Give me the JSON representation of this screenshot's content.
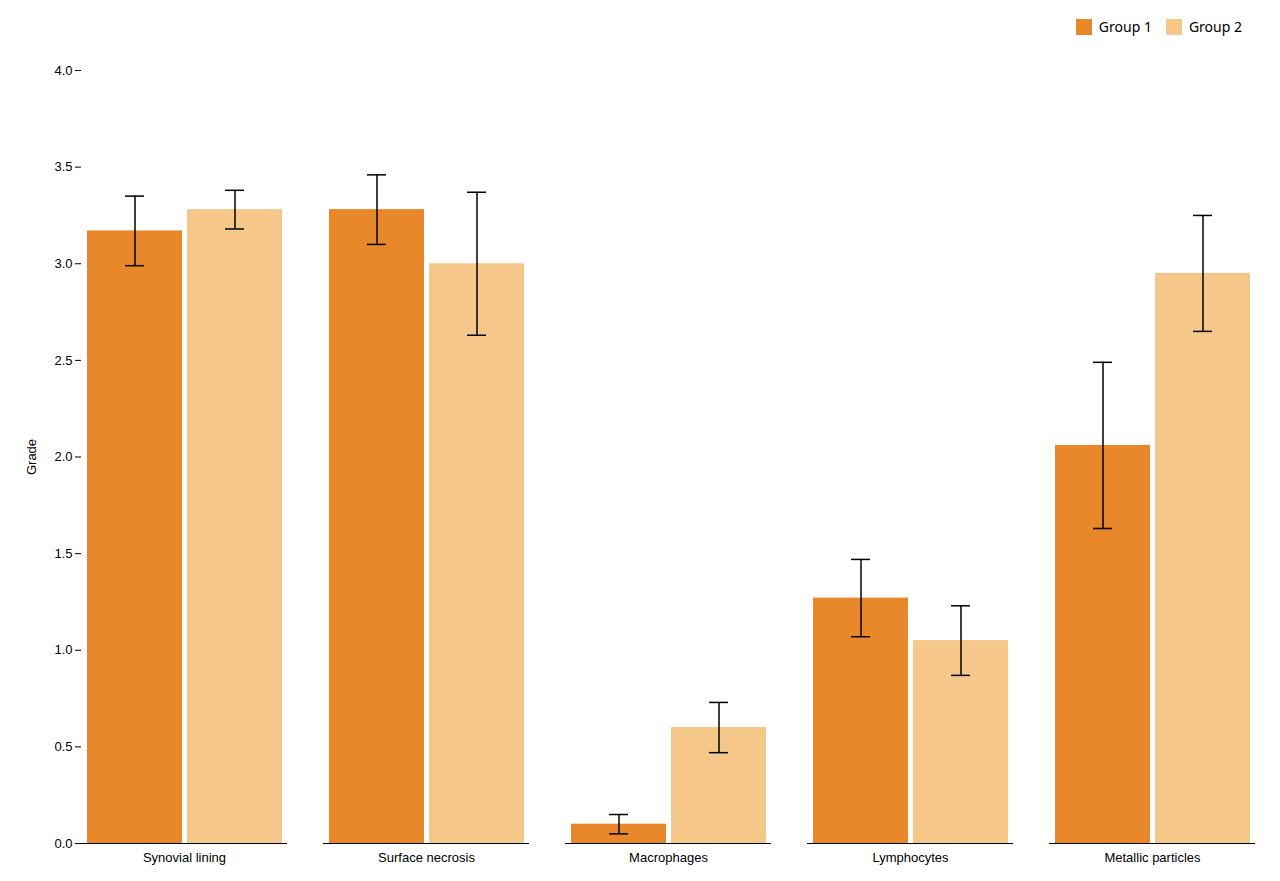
{
  "chart_data": {
    "type": "bar",
    "categories": [
      "Synovial lining",
      "Surface necrosis",
      "Macrophages",
      "Lymphocytes",
      "Metallic particles"
    ],
    "series": [
      {
        "name": "Group 1",
        "color": "#E8882A",
        "values": [
          3.17,
          3.28,
          0.1,
          1.27,
          2.06
        ],
        "errors": [
          0.18,
          0.18,
          0.05,
          0.2,
          0.43
        ]
      },
      {
        "name": "Group 2",
        "color": "#F5C88A",
        "values": [
          3.28,
          3.0,
          0.6,
          1.05,
          2.95
        ],
        "errors": [
          0.1,
          0.37,
          0.13,
          0.18,
          0.3
        ]
      }
    ],
    "ylabel": "Grade",
    "ylim": [
      0,
      4.0
    ],
    "yticks": [
      {
        "value": 0.0,
        "label": "0.0"
      },
      {
        "value": 0.5,
        "label": "0.5"
      },
      {
        "value": 1.0,
        "label": "1.0"
      },
      {
        "value": 1.5,
        "label": "1.5"
      },
      {
        "value": 2.0,
        "label": "2.0"
      },
      {
        "value": 2.5,
        "label": "2.5"
      },
      {
        "value": 3.0,
        "label": "3.0"
      },
      {
        "value": 3.5,
        "label": "3.5"
      },
      {
        "value": 4.0,
        "label": "4.0"
      }
    ],
    "grid": false,
    "legend": "upper right"
  }
}
